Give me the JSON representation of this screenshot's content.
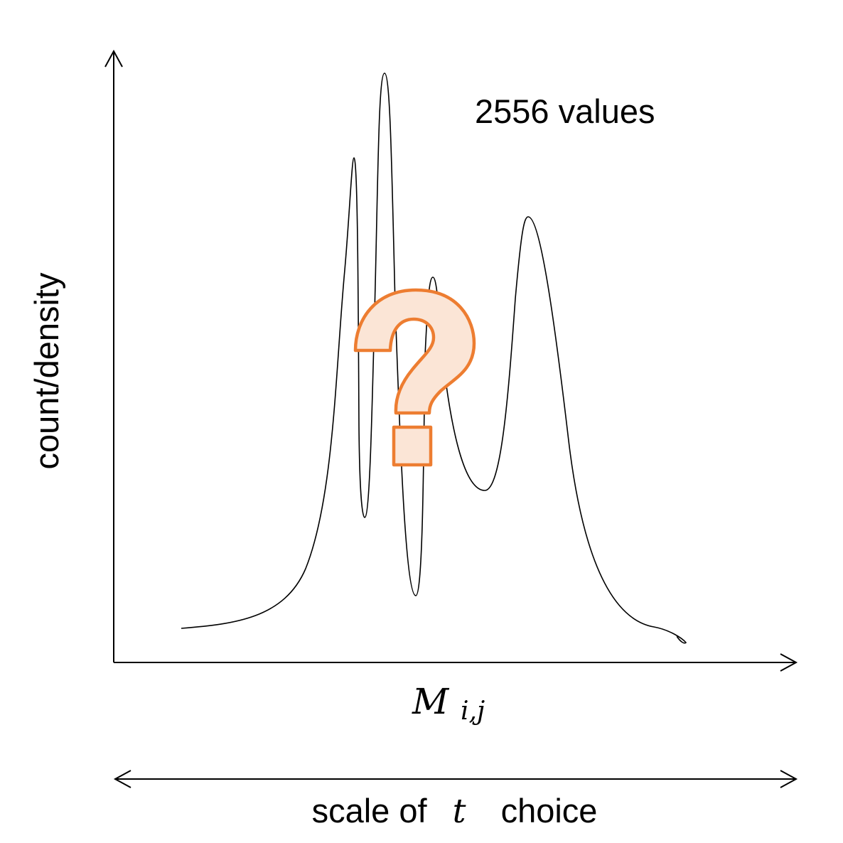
{
  "annotation": "2556 values",
  "y_axis_label": "count/density",
  "x_axis_label": {
    "main": "M",
    "subscript": "i,j"
  },
  "scale_label": {
    "prefix": "scale of ",
    "variable": "t",
    "suffix": " choice"
  },
  "question_mark": "?",
  "colors": {
    "line": "#000000",
    "accent_stroke": "#ED7D31",
    "accent_fill": "#FBE5D6",
    "background": "#FFFFFF"
  },
  "icons": {
    "question": "question-mark-icon"
  }
}
